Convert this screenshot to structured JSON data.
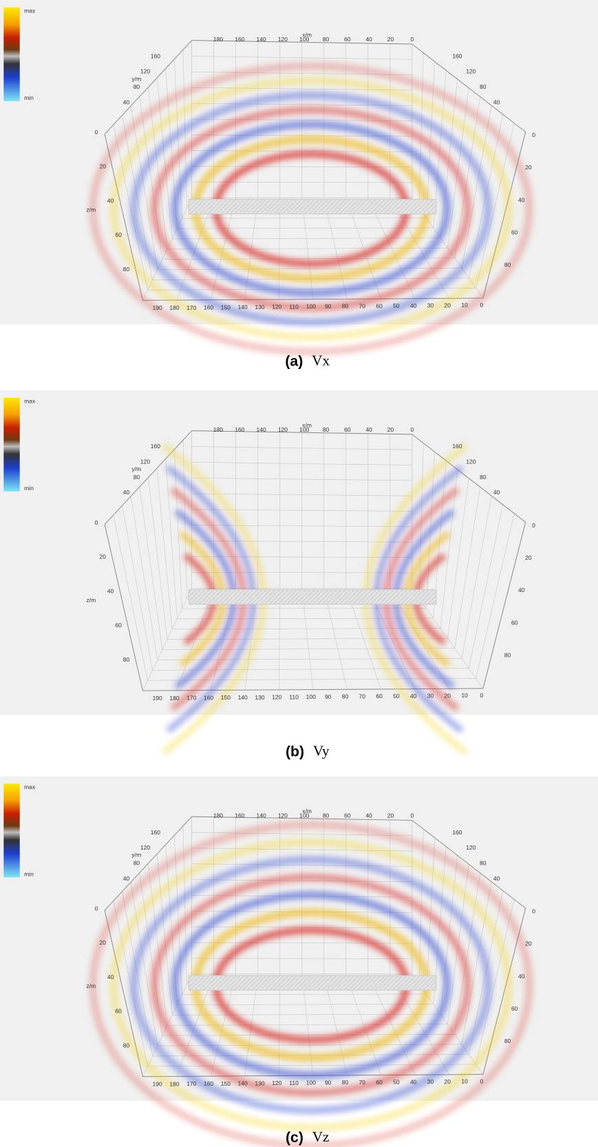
{
  "colorbar": {
    "max": "max",
    "min": "min"
  },
  "axes": {
    "x_label": "x/m",
    "y_label": "y/m",
    "z_label": "z/m",
    "x_top_ticks": [
      180,
      160,
      140,
      120,
      100,
      80,
      60,
      40,
      20,
      0
    ],
    "x_bottom_ticks": [
      190,
      180,
      170,
      160,
      150,
      140,
      130,
      120,
      110,
      100,
      90,
      80,
      70,
      60,
      50,
      40,
      30,
      20,
      10,
      0
    ],
    "y_left_ticks": [
      160,
      120,
      80,
      40
    ],
    "y_right_ticks": [
      160,
      120,
      80,
      40
    ],
    "z_left_ticks": [
      0,
      20,
      40,
      60,
      80
    ],
    "z_right_ticks": [
      0,
      20,
      40,
      60,
      80
    ]
  },
  "panels": [
    {
      "label": "(a)",
      "variable": "Vx"
    },
    {
      "label": "(b)",
      "variable": "Vy"
    },
    {
      "label": "(c)",
      "variable": "Vz"
    }
  ]
}
